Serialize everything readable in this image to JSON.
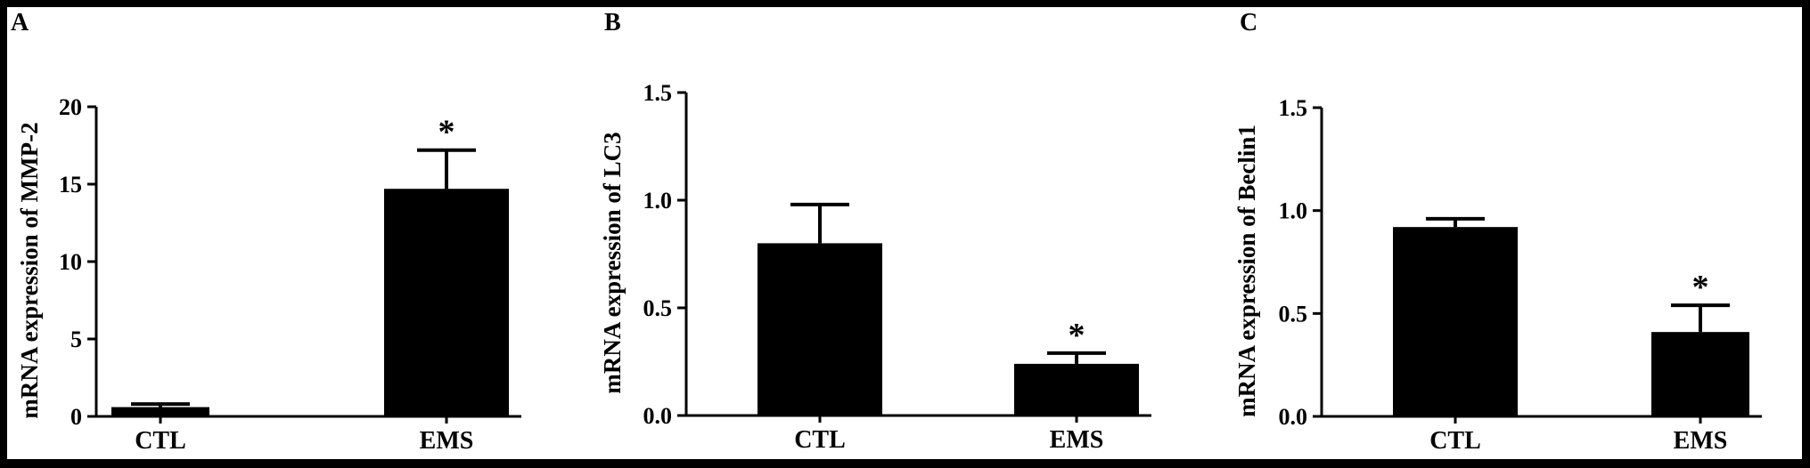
{
  "chart_data": [
    {
      "type": "bar",
      "panel": "A",
      "categories": [
        "CTL",
        "EMS"
      ],
      "values": [
        0.6,
        14.7
      ],
      "errors": [
        0.2,
        2.5
      ],
      "annotations": [
        "",
        "*"
      ],
      "ylabel": "mRNA expression of MMP-2",
      "ylim": [
        0,
        20
      ],
      "yticks": [
        0,
        5,
        10,
        15,
        20
      ],
      "ytick_labels": [
        "0",
        "5",
        "10",
        "15",
        "20"
      ]
    },
    {
      "type": "bar",
      "panel": "B",
      "categories": [
        "CTL",
        "EMS"
      ],
      "values": [
        0.8,
        0.24
      ],
      "errors": [
        0.18,
        0.05
      ],
      "annotations": [
        "",
        "*"
      ],
      "ylabel": "mRNA expression of LC3",
      "ylim": [
        0,
        1.5
      ],
      "yticks": [
        0,
        0.5,
        1.0,
        1.5
      ],
      "ytick_labels": [
        "0.0",
        "0.5",
        "1.0",
        "1.5"
      ]
    },
    {
      "type": "bar",
      "panel": "C",
      "categories": [
        "CTL",
        "EMS"
      ],
      "values": [
        0.92,
        0.41
      ],
      "errors": [
        0.04,
        0.13
      ],
      "annotations": [
        "",
        "*"
      ],
      "ylabel": "mRNA expression of Beclin1",
      "ylim": [
        0,
        1.5
      ],
      "yticks": [
        0,
        0.5,
        1.0,
        1.5
      ],
      "ytick_labels": [
        "0.0",
        "0.5",
        "1.0",
        "1.5"
      ]
    }
  ]
}
